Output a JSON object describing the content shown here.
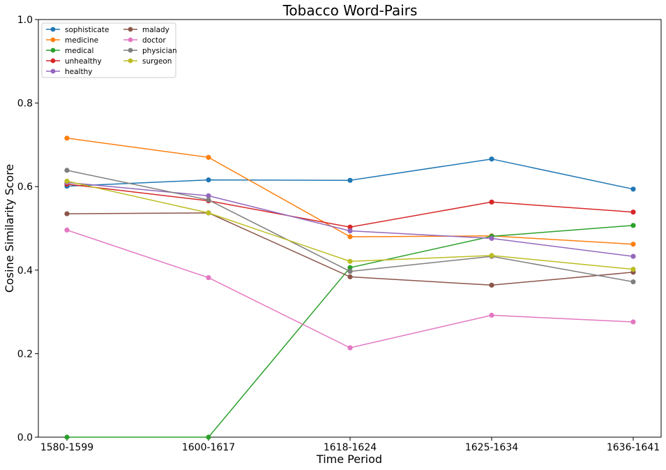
{
  "chart_data": {
    "type": "line",
    "title": "Tobacco Word-Pairs",
    "xlabel": "Time Period",
    "ylabel": "Cosine Similarity Score",
    "categories": [
      "1580-1599",
      "1600-1617",
      "1618-1624",
      "1625-1634",
      "1636-1641"
    ],
    "ylim": [
      0,
      1.0
    ],
    "yticks": [
      "0.0",
      "0.2",
      "0.4",
      "0.6",
      "0.8",
      "1.0"
    ],
    "grid": false,
    "legend_position": "top-left",
    "series": [
      {
        "name": "sophisticate",
        "color": "#1f77b4",
        "values": [
          0.601,
          0.616,
          0.615,
          0.666,
          0.594
        ]
      },
      {
        "name": "medicine",
        "color": "#ff7f0e",
        "values": [
          0.716,
          0.67,
          0.48,
          0.482,
          0.462
        ]
      },
      {
        "name": "medical",
        "color": "#2ca02c",
        "values": [
          0.0,
          0.0,
          0.406,
          0.481,
          0.507
        ]
      },
      {
        "name": "unhealthy",
        "color": "#d62728",
        "values": [
          0.606,
          0.566,
          0.503,
          0.563,
          0.539
        ]
      },
      {
        "name": "healthy",
        "color": "#9467bd",
        "values": [
          0.61,
          0.578,
          0.494,
          0.476,
          0.433
        ]
      },
      {
        "name": "malady",
        "color": "#8c564b",
        "values": [
          0.535,
          0.537,
          0.384,
          0.364,
          0.395
        ]
      },
      {
        "name": "doctor",
        "color": "#e377c2",
        "values": [
          0.496,
          0.382,
          0.214,
          0.292,
          0.276
        ]
      },
      {
        "name": "physician",
        "color": "#7f7f7f",
        "values": [
          0.639,
          0.568,
          0.397,
          0.433,
          0.372
        ]
      },
      {
        "name": "surgeon",
        "color": "#bcbd22",
        "values": [
          0.613,
          0.537,
          0.421,
          0.435,
          0.402
        ]
      }
    ]
  }
}
